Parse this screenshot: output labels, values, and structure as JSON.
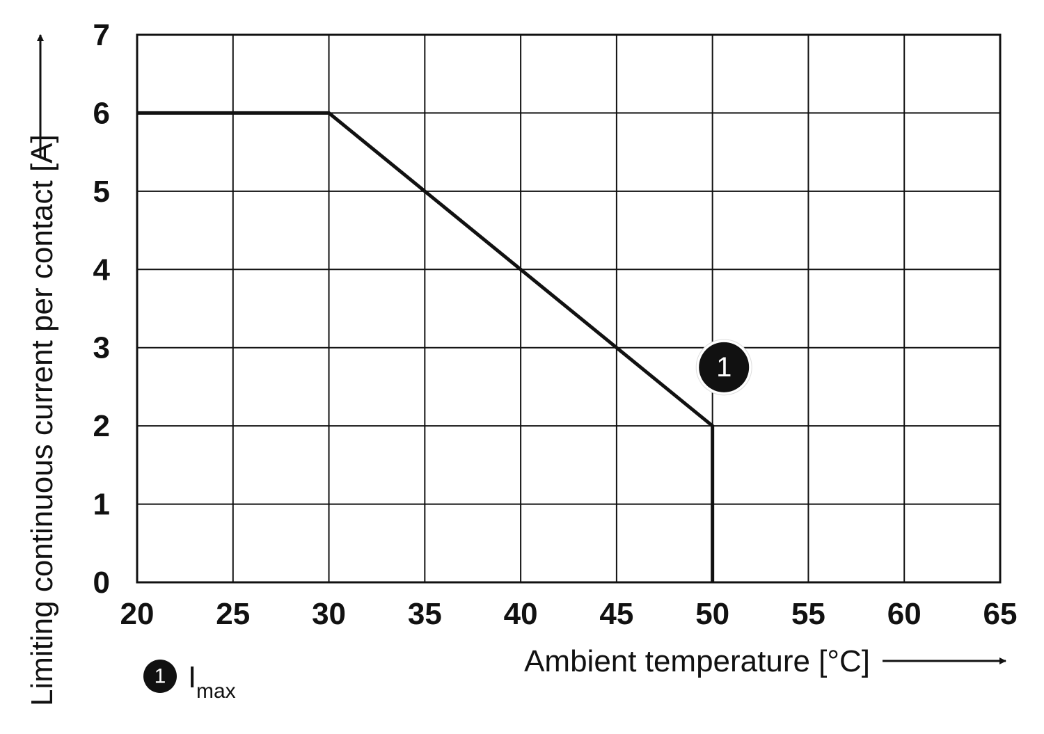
{
  "chart_data": {
    "type": "line",
    "xlabel": "Ambient temperature [°C]",
    "ylabel": "Limiting continuous current per contact [A]",
    "xlim": [
      20,
      65
    ],
    "ylim": [
      0,
      7
    ],
    "x_ticks": [
      "20",
      "25",
      "30",
      "35",
      "40",
      "45",
      "50",
      "55",
      "60",
      "65"
    ],
    "y_ticks": [
      "0",
      "1",
      "2",
      "3",
      "4",
      "5",
      "6",
      "7"
    ],
    "grid": true,
    "line_color": "#111111",
    "series": [
      {
        "points": [
          {
            "x": 20,
            "y": 6
          },
          {
            "x": 30,
            "y": 6
          },
          {
            "x": 50,
            "y": 2
          },
          {
            "x": 50,
            "y": 0
          }
        ]
      }
    ],
    "annotations": [
      {
        "label": "1",
        "x": 50.6,
        "y": 2.75
      }
    ],
    "legend": {
      "marker": "1",
      "text": "I",
      "subscript": "max"
    }
  }
}
